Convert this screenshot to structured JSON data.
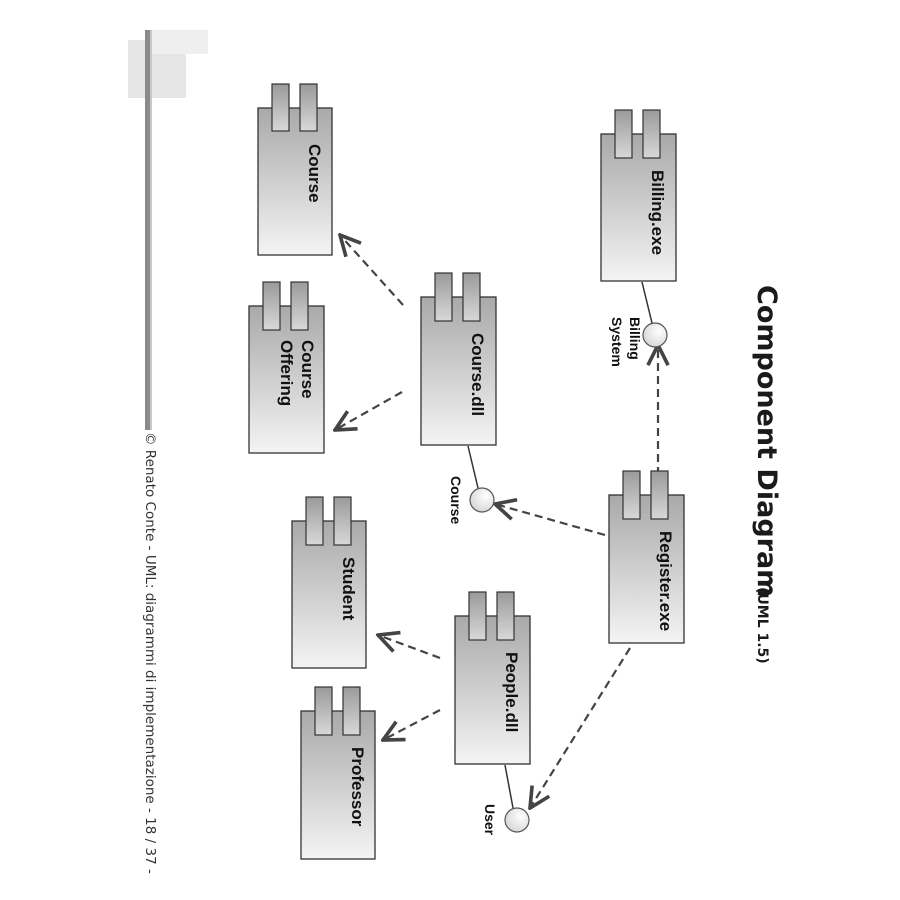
{
  "title": {
    "main": "Component Diagram",
    "sub": "(UML 1.5)"
  },
  "footer": "© Renato Conte - UML: diagrammi di implementazione - 18 / 37 -",
  "components": {
    "course": [
      "Course"
    ],
    "course_offering": [
      "Course",
      "Offering"
    ],
    "student": [
      "Student"
    ],
    "professor": [
      "Professor"
    ],
    "course_dll": [
      "Course.dll"
    ],
    "people_dll": [
      "People.dll"
    ],
    "billing_exe": [
      "Billing.exe"
    ],
    "register_exe": [
      "Register.exe"
    ]
  },
  "interfaces": {
    "billing_system": [
      "Billing",
      "System"
    ],
    "course": [
      "Course"
    ],
    "user": [
      "User"
    ]
  },
  "colors": {
    "component_fill_light": "#f2f2f2",
    "component_fill_dark": "#a8a8a8",
    "line": "#444444"
  }
}
